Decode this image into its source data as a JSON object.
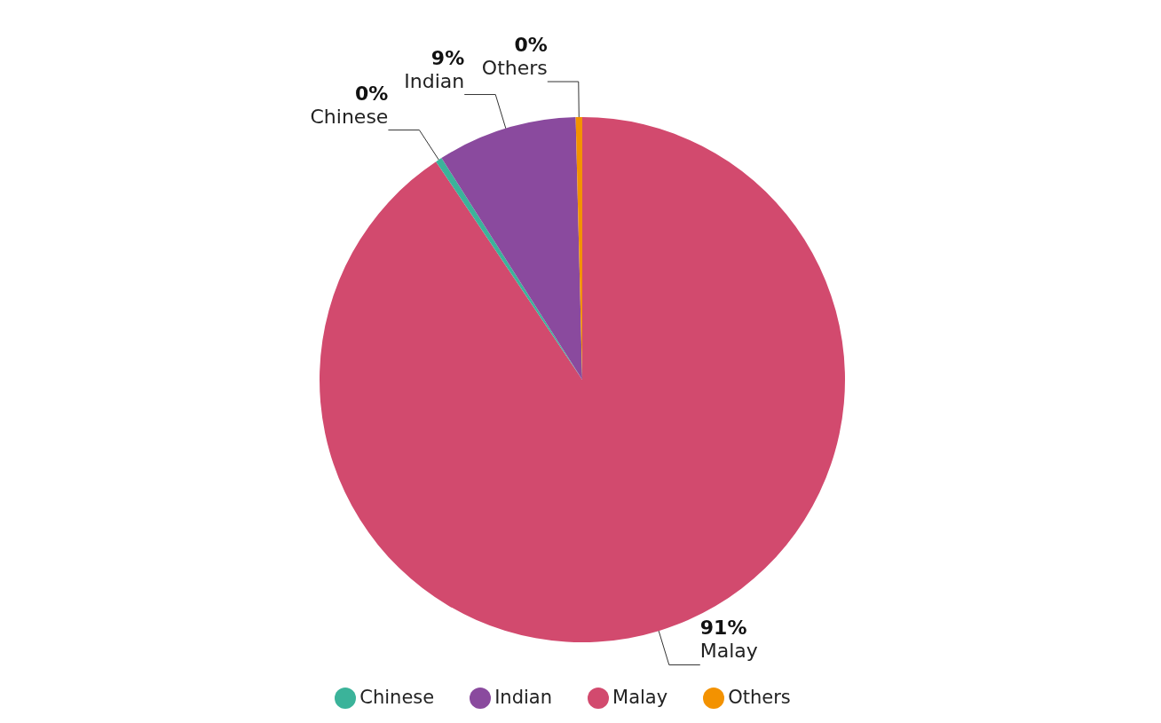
{
  "chart_data": {
    "type": "pie",
    "categories": [
      "Malay",
      "Chinese",
      "Indian",
      "Others"
    ],
    "values": [
      90.6,
      0.4,
      8.6,
      0.4
    ],
    "value_labels": [
      "91%",
      "0%",
      "9%",
      "0%"
    ],
    "colors": [
      "#d24a6e",
      "#3bb39a",
      "#8a4a9e",
      "#f39200"
    ],
    "legend": "bottom"
  }
}
